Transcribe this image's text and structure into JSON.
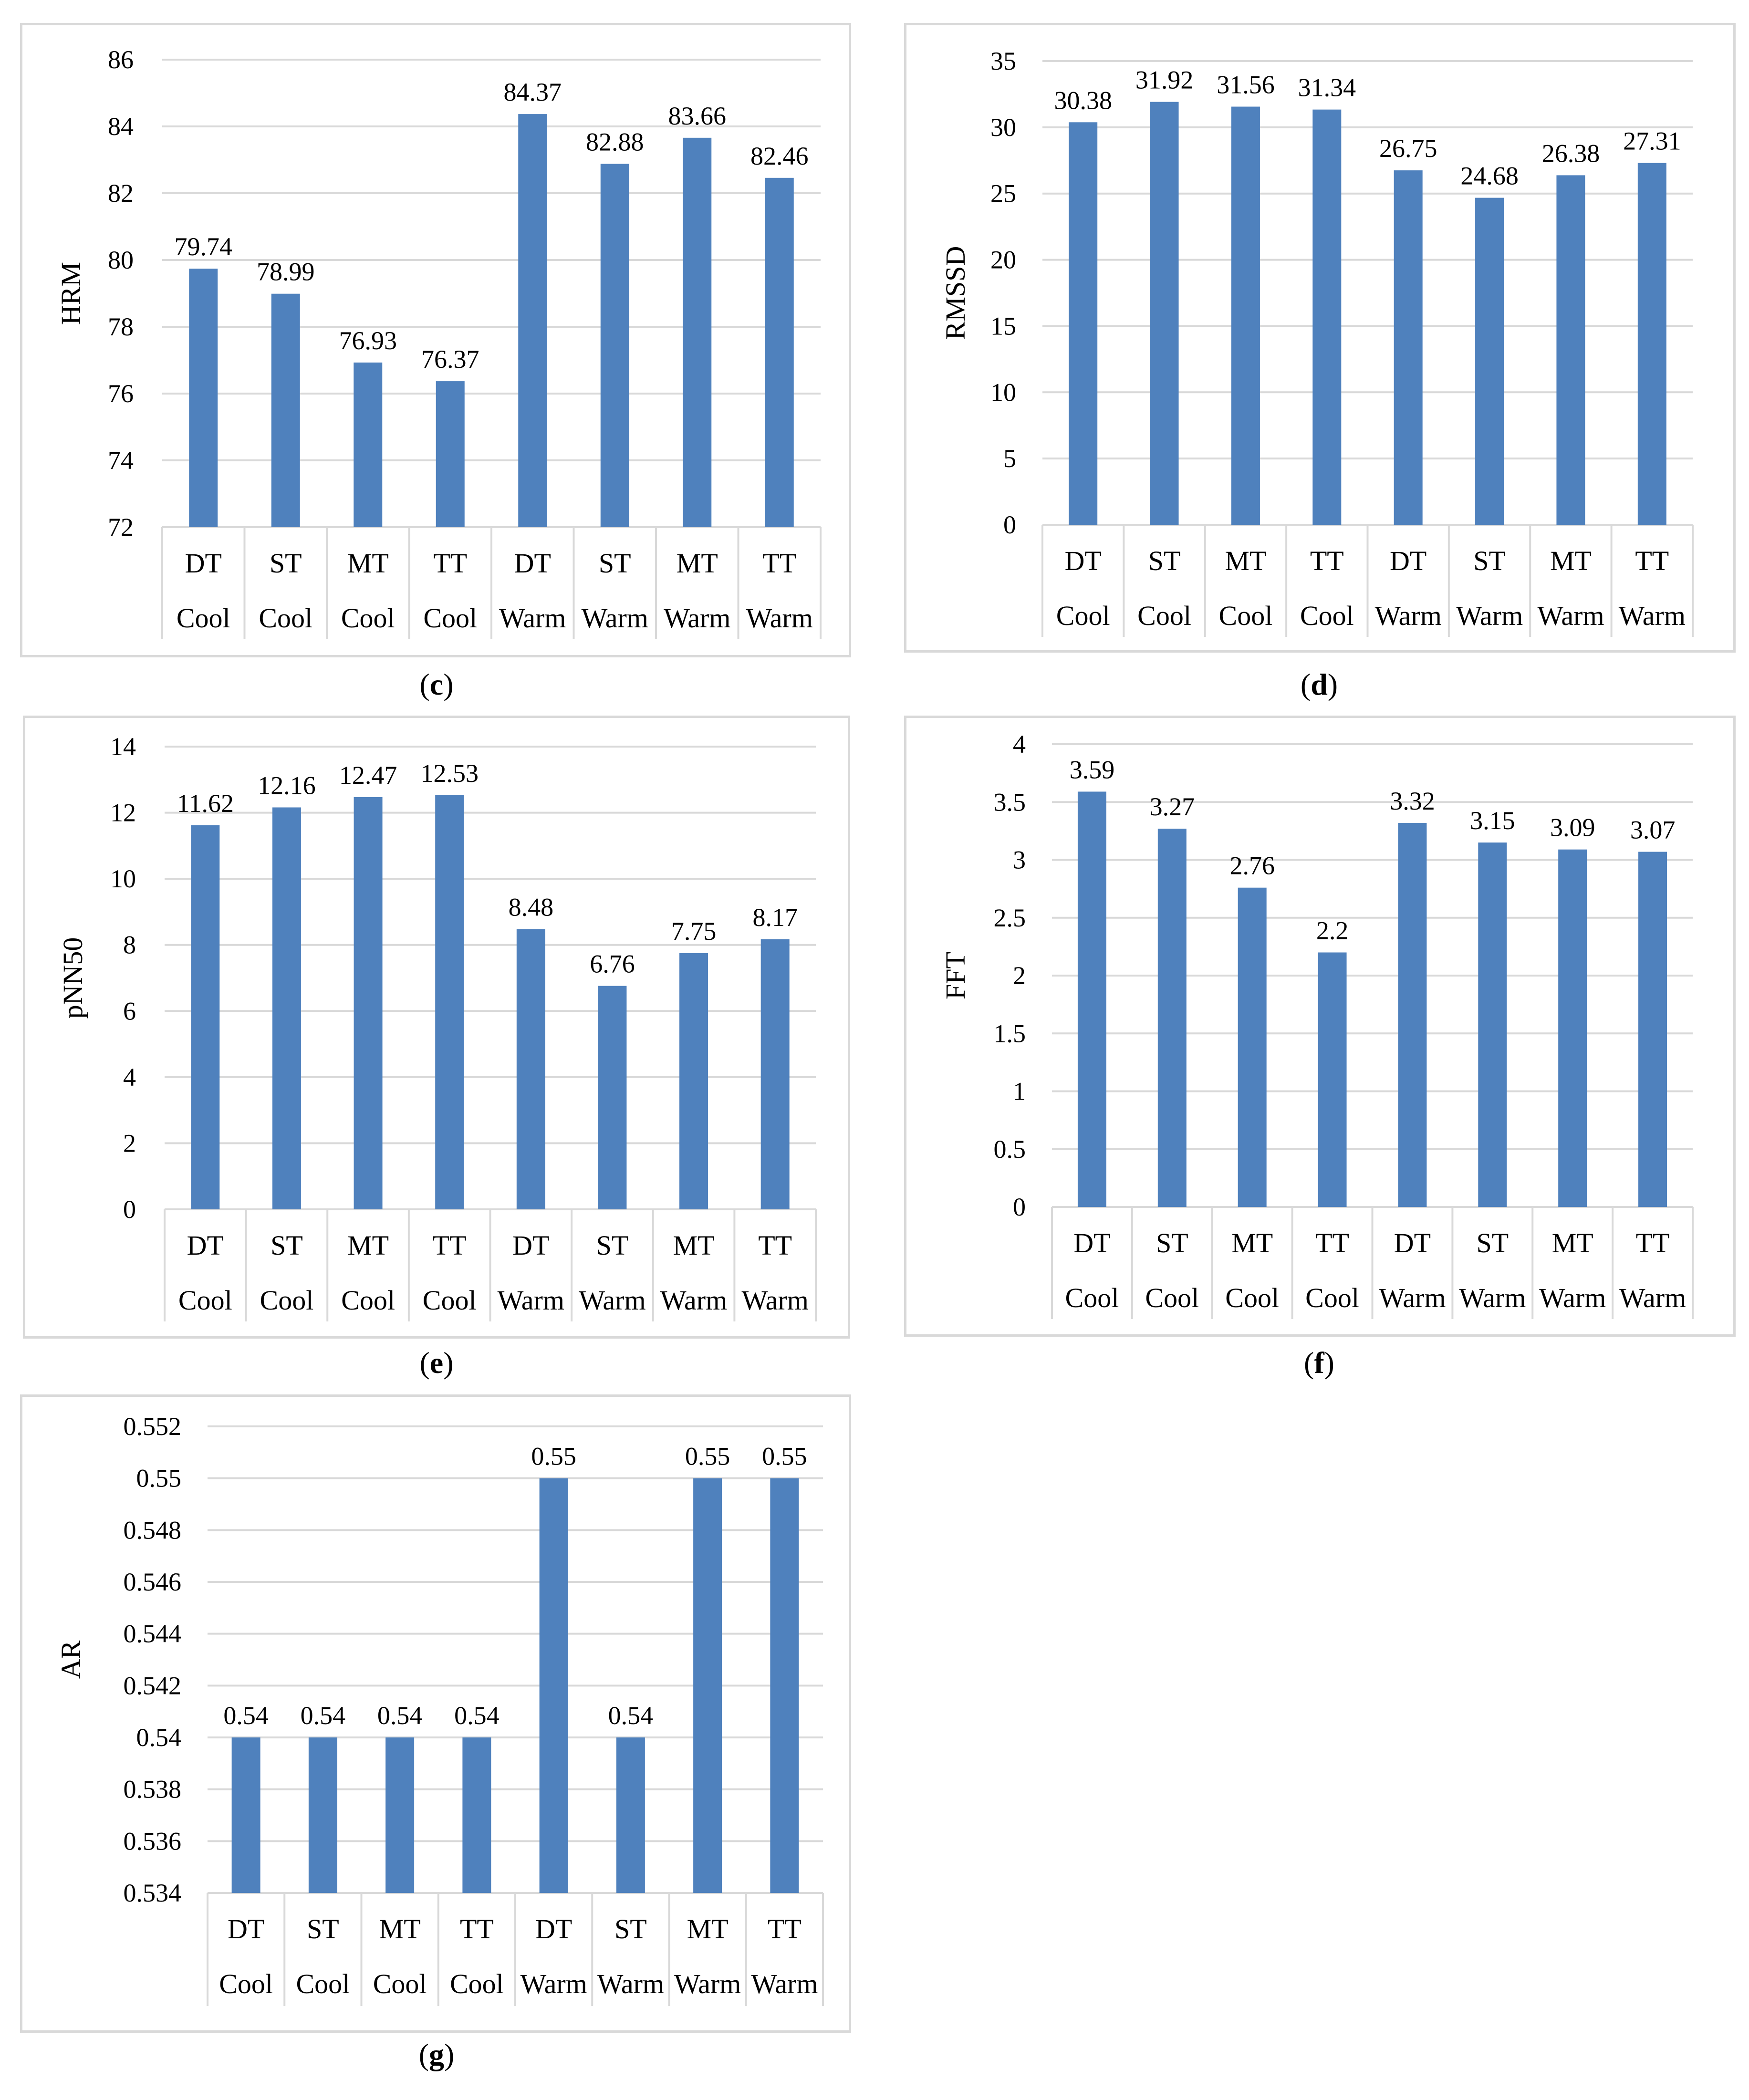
{
  "colors": {
    "bar": "#4f81bd",
    "grid": "#d9d9d9",
    "frame": "#d9d9d9",
    "text": "#000000"
  },
  "chart_data": [
    {
      "id": "c",
      "type": "bar",
      "caption": "c",
      "ylabel": "HRM",
      "ylim": [
        72,
        86
      ],
      "yticks": [
        72,
        74,
        76,
        78,
        80,
        82,
        84,
        86
      ],
      "tick_labels": [
        "72",
        "74",
        "76",
        "78",
        "80",
        "82",
        "84",
        "86"
      ],
      "categories": [
        "DT",
        "ST",
        "MT",
        "TT",
        "DT",
        "ST",
        "MT",
        "TT"
      ],
      "groups": [
        "Cool",
        "Cool",
        "Cool",
        "Cool",
        "Warm",
        "Warm",
        "Warm",
        "Warm"
      ],
      "values": [
        79.74,
        78.99,
        76.93,
        76.37,
        84.37,
        82.88,
        83.66,
        82.46
      ],
      "value_labels": [
        "79.74",
        "78.99",
        "76.93",
        "76.37",
        "84.37",
        "82.88",
        "83.66",
        "82.46"
      ]
    },
    {
      "id": "d",
      "type": "bar",
      "caption": "d",
      "ylabel": "RMSSD",
      "ylim": [
        0,
        35
      ],
      "yticks": [
        0,
        5,
        10,
        15,
        20,
        25,
        30,
        35
      ],
      "tick_labels": [
        "0",
        "5",
        "10",
        "15",
        "20",
        "25",
        "30",
        "35"
      ],
      "categories": [
        "DT",
        "ST",
        "MT",
        "TT",
        "DT",
        "ST",
        "MT",
        "TT"
      ],
      "groups": [
        "Cool",
        "Cool",
        "Cool",
        "Cool",
        "Warm",
        "Warm",
        "Warm",
        "Warm"
      ],
      "values": [
        30.38,
        31.92,
        31.56,
        31.34,
        26.75,
        24.68,
        26.38,
        27.31
      ],
      "value_labels": [
        "30.38",
        "31.92",
        "31.56",
        "31.34",
        "26.75",
        "24.68",
        "26.38",
        "27.31"
      ]
    },
    {
      "id": "e",
      "type": "bar",
      "caption": "e",
      "ylabel": "pNN50",
      "ylim": [
        0,
        14
      ],
      "yticks": [
        0,
        2,
        4,
        6,
        8,
        10,
        12,
        14
      ],
      "tick_labels": [
        "0",
        "2",
        "4",
        "6",
        "8",
        "10",
        "12",
        "14"
      ],
      "categories": [
        "DT",
        "ST",
        "MT",
        "TT",
        "DT",
        "ST",
        "MT",
        "TT"
      ],
      "groups": [
        "Cool",
        "Cool",
        "Cool",
        "Cool",
        "Warm",
        "Warm",
        "Warm",
        "Warm"
      ],
      "values": [
        11.62,
        12.16,
        12.47,
        12.53,
        8.48,
        6.76,
        7.75,
        8.17
      ],
      "value_labels": [
        "11.62",
        "12.16",
        "12.47",
        "12.53",
        "8.48",
        "6.76",
        "7.75",
        "8.17"
      ]
    },
    {
      "id": "f",
      "type": "bar",
      "caption": "f",
      "ylabel": "FFT",
      "ylim": [
        0,
        4
      ],
      "yticks": [
        0,
        0.5,
        1,
        1.5,
        2,
        2.5,
        3,
        3.5,
        4
      ],
      "tick_labels": [
        "0",
        "0.5",
        "1",
        "1.5",
        "2",
        "2.5",
        "3",
        "3.5",
        "4"
      ],
      "categories": [
        "DT",
        "ST",
        "MT",
        "TT",
        "DT",
        "ST",
        "MT",
        "TT"
      ],
      "groups": [
        "Cool",
        "Cool",
        "Cool",
        "Cool",
        "Warm",
        "Warm",
        "Warm",
        "Warm"
      ],
      "values": [
        3.59,
        3.27,
        2.76,
        2.2,
        3.32,
        3.15,
        3.09,
        3.07
      ],
      "value_labels": [
        "3.59",
        "3.27",
        "2.76",
        "2.2",
        "3.32",
        "3.15",
        "3.09",
        "3.07"
      ]
    },
    {
      "id": "g",
      "type": "bar",
      "caption": "g",
      "ylabel": "AR",
      "ylim": [
        0.534,
        0.552
      ],
      "yticks": [
        0.534,
        0.536,
        0.538,
        0.54,
        0.542,
        0.544,
        0.546,
        0.548,
        0.55,
        0.552
      ],
      "tick_labels": [
        "0.534",
        "0.536",
        "0.538",
        "0.54",
        "0.542",
        "0.544",
        "0.546",
        "0.548",
        "0.55",
        "0.552"
      ],
      "categories": [
        "DT",
        "ST",
        "MT",
        "TT",
        "DT",
        "ST",
        "MT",
        "TT"
      ],
      "groups": [
        "Cool",
        "Cool",
        "Cool",
        "Cool",
        "Warm",
        "Warm",
        "Warm",
        "Warm"
      ],
      "values": [
        0.54,
        0.54,
        0.54,
        0.54,
        0.55,
        0.54,
        0.55,
        0.55
      ],
      "value_labels": [
        "0.54",
        "0.54",
        "0.54",
        "0.54",
        "0.55",
        "0.54",
        "0.55",
        "0.55"
      ]
    }
  ]
}
